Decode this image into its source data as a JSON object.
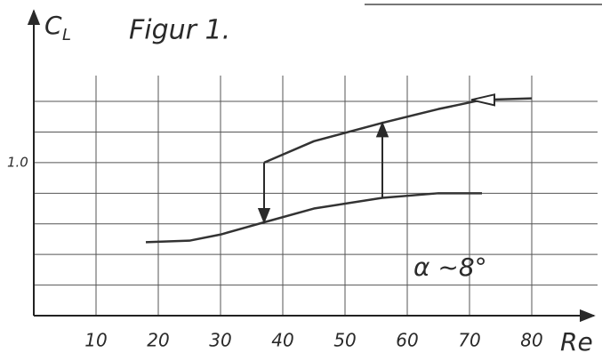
{
  "chart_data": {
    "type": "line",
    "title": "Figur 1.",
    "y_label": "C",
    "y_label_sub": "L",
    "x_label": "Re",
    "annotation": "α ~8°",
    "x": [
      18,
      25,
      30,
      37,
      45,
      56,
      65,
      72,
      80
    ],
    "series": [
      {
        "color": "#333333",
        "values": [
          0.48,
          0.49,
          0.53,
          0.61,
          0.7,
          0.77,
          0.8,
          0.8,
          null
        ]
      },
      {
        "color": "#333333",
        "values": [
          null,
          null,
          null,
          1.0,
          1.14,
          1.26,
          1.35,
          1.41,
          1.42
        ]
      }
    ],
    "xlim": [
      0,
      89
    ],
    "ylim": [
      0,
      1.9
    ],
    "xticks": [
      10,
      20,
      30,
      40,
      50,
      60,
      70,
      80
    ],
    "yticks": [
      {
        "value": 0.2,
        "label": null
      },
      {
        "value": 0.4,
        "label": null
      },
      {
        "value": 0.6,
        "label": null
      },
      {
        "value": 0.8,
        "label": null
      },
      {
        "value": 1,
        "label": "1.0"
      },
      {
        "value": 1.2,
        "label": null
      },
      {
        "value": 1.4,
        "label": null
      }
    ],
    "grid": true
  }
}
